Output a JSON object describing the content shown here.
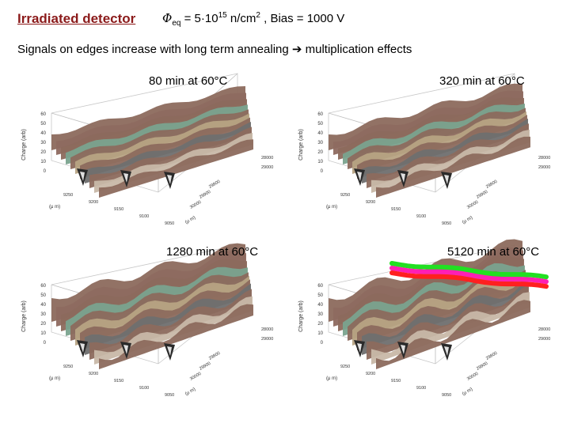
{
  "header": {
    "title": "Irradiated detector",
    "phi_symbol": "Φ",
    "phi_sub": "eq",
    "fluence_prefix": " = 5·10",
    "fluence_exp": "15",
    "fluence_unit": " n/cm",
    "unit_exp": "2",
    "bias": " , Bias = 1000 V"
  },
  "subtitle": {
    "text_before": "Signals on edges increase with long term annealing ",
    "arrow": "➔",
    "text_after": " multiplication effects"
  },
  "panels": [
    {
      "label": "80 min at 60°C"
    },
    {
      "label": "320 min at 60°C"
    },
    {
      "label": "1280 min at 60°C"
    },
    {
      "label": "5120 min at 60°C"
    }
  ],
  "axes": {
    "z_title": "Charge (arb)",
    "z_ticks": [
      "0",
      "10",
      "20",
      "30",
      "40",
      "50",
      "60"
    ],
    "x_ticks": [
      "9250",
      "9200",
      "9150",
      "9100",
      "9050"
    ],
    "y_ticks": [
      "29800",
      "29900",
      "30000"
    ],
    "y_ticks_far": [
      "29000",
      "28000"
    ],
    "x_unit": "(μ m)",
    "y_unit": "(μ m)"
  },
  "colors": {
    "title": "#8b1a1a",
    "surface_bands": [
      "#c8b8a8",
      "#8e6a60",
      "#a6a29a",
      "#7aa38e",
      "#8f8bb1",
      "#b7a383",
      "#9d9d9d",
      "#6f6f6f",
      "#d8c8a8"
    ],
    "edge_brown": "#8c6a5d",
    "highlight_green": "#22e022",
    "highlight_magenta": "#ff1fb4",
    "highlight_red": "#ff2020"
  }
}
